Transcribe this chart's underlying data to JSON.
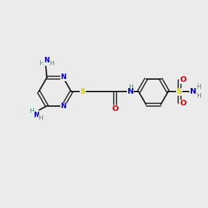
{
  "bg_color": "#ebebeb",
  "bond_color": "#1a1a1a",
  "n_color": "#0000cc",
  "o_color": "#cc0000",
  "s_color": "#cccc00",
  "h_color": "#4a8080",
  "figsize": [
    3.0,
    3.0
  ],
  "dpi": 100,
  "xlim": [
    0,
    10
  ],
  "ylim": [
    0,
    10
  ]
}
